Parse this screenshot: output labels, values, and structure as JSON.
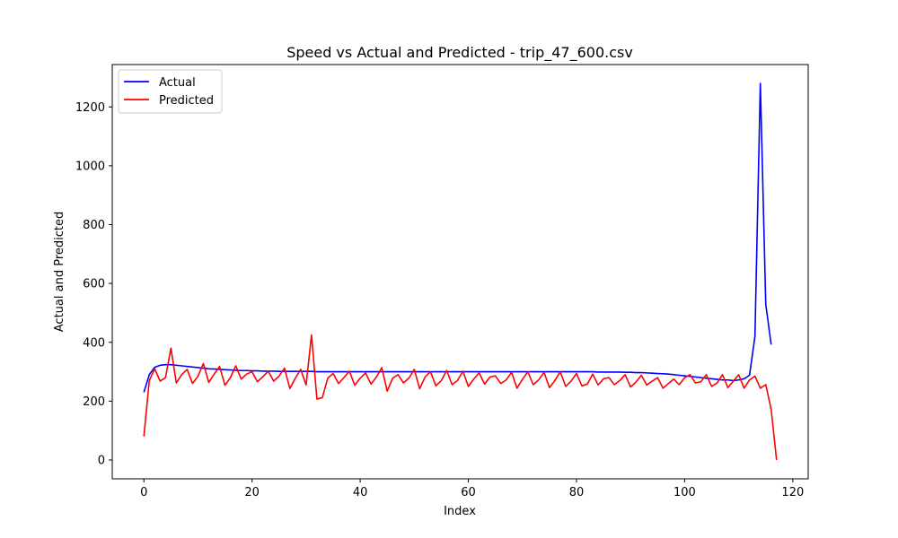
{
  "chart_data": {
    "type": "line",
    "title": "Speed vs Actual and Predicted - trip_47_600.csv",
    "xlabel": "Index",
    "ylabel": "Actual and Predicted",
    "xlim": [
      -5.85,
      122.85
    ],
    "ylim": [
      -64,
      1344
    ],
    "xticks": [
      0,
      20,
      40,
      60,
      80,
      100,
      120
    ],
    "yticks": [
      0,
      200,
      400,
      600,
      800,
      1000,
      1200
    ],
    "grid": false,
    "legend": "top-left",
    "x_start": 0,
    "series": [
      {
        "name": "Actual",
        "color": "#0000ff",
        "values": [
          230,
          290,
          315,
          322,
          324,
          324,
          322,
          320,
          318,
          316,
          314,
          312,
          310,
          309,
          308,
          307,
          306,
          305,
          304,
          304,
          303,
          303,
          302,
          302,
          302,
          301,
          301,
          301,
          301,
          301,
          301,
          301,
          300,
          300,
          300,
          300,
          300,
          300,
          300,
          300,
          300,
          300,
          300,
          300,
          300,
          300,
          300,
          300,
          300,
          300,
          300,
          300,
          300,
          300,
          300,
          300,
          300,
          300,
          300,
          300,
          300,
          300,
          300,
          300,
          300,
          300,
          300,
          300,
          300,
          300,
          300,
          300,
          300,
          300,
          300,
          300,
          300,
          300,
          300,
          300,
          300,
          300,
          300,
          300,
          299,
          299,
          299,
          299,
          299,
          298,
          298,
          297,
          297,
          296,
          295,
          294,
          293,
          292,
          290,
          288,
          286,
          284,
          282,
          280,
          278,
          276,
          274,
          272,
          272,
          270,
          272,
          276,
          288,
          420,
          1280,
          530,
          392
        ]
      },
      {
        "name": "Predicted",
        "color": "#ff0000",
        "values": [
          80,
          270,
          310,
          268,
          280,
          380,
          262,
          290,
          308,
          260,
          285,
          328,
          264,
          292,
          318,
          254,
          280,
          320,
          275,
          292,
          300,
          266,
          283,
          302,
          268,
          285,
          312,
          243,
          278,
          308,
          255,
          425,
          207,
          212,
          278,
          294,
          260,
          280,
          302,
          254,
          278,
          296,
          258,
          282,
          314,
          234,
          278,
          290,
          262,
          278,
          308,
          242,
          282,
          300,
          252,
          270,
          304,
          256,
          270,
          302,
          250,
          275,
          296,
          258,
          282,
          286,
          260,
          272,
          298,
          244,
          274,
          300,
          256,
          272,
          298,
          246,
          270,
          300,
          250,
          268,
          294,
          252,
          258,
          292,
          255,
          276,
          280,
          256,
          270,
          290,
          248,
          265,
          288,
          255,
          268,
          280,
          244,
          260,
          275,
          256,
          280,
          290,
          262,
          266,
          290,
          250,
          262,
          290,
          246,
          268,
          290,
          244,
          272,
          285,
          244,
          256,
          172,
          0
        ]
      }
    ]
  }
}
